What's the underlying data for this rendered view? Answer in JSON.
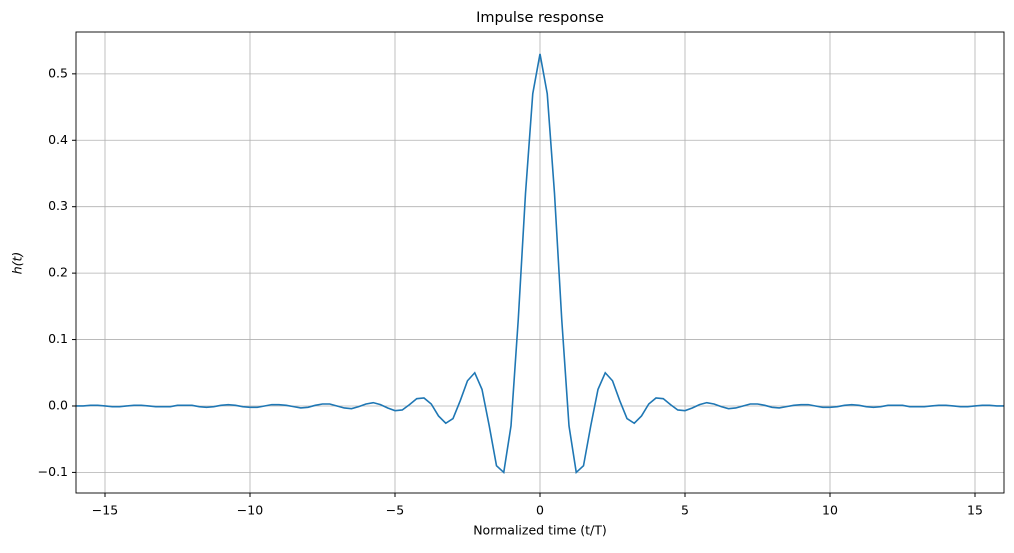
{
  "chart_data": {
    "type": "line",
    "title": "Impulse response",
    "xlabel": "Normalized time (t/T)",
    "ylabel": "h(t)",
    "x": [
      -16,
      -15.75,
      -15.5,
      -15.25,
      -15,
      -14.75,
      -14.5,
      -14.25,
      -14,
      -13.75,
      -13.5,
      -13.25,
      -13,
      -12.75,
      -12.5,
      -12.25,
      -12,
      -11.75,
      -11.5,
      -11.25,
      -11,
      -10.75,
      -10.5,
      -10.25,
      -10,
      -9.75,
      -9.5,
      -9.25,
      -9,
      -8.75,
      -8.5,
      -8.25,
      -8,
      -7.75,
      -7.5,
      -7.25,
      -7,
      -6.75,
      -6.5,
      -6.25,
      -6,
      -5.75,
      -5.5,
      -5.25,
      -5,
      -4.75,
      -4.5,
      -4.25,
      -4,
      -3.75,
      -3.5,
      -3.25,
      -3,
      -2.75,
      -2.5,
      -2.25,
      -2,
      -1.75,
      -1.5,
      -1.25,
      -1,
      -0.75,
      -0.5,
      -0.25,
      0,
      0.25,
      0.5,
      0.75,
      1,
      1.25,
      1.5,
      1.75,
      2,
      2.25,
      2.5,
      2.75,
      3,
      3.25,
      3.5,
      3.75,
      4,
      4.25,
      4.5,
      4.75,
      5,
      5.25,
      5.5,
      5.75,
      6,
      6.25,
      6.5,
      6.75,
      7,
      7.25,
      7.5,
      7.75,
      8,
      8.25,
      8.5,
      8.75,
      9,
      9.25,
      9.5,
      9.75,
      10,
      10.25,
      10.5,
      10.75,
      11,
      11.25,
      11.5,
      11.75,
      12,
      12.25,
      12.5,
      12.75,
      13,
      13.25,
      13.5,
      13.75,
      14,
      14.25,
      14.5,
      14.75,
      15,
      15.25,
      15.5,
      15.75,
      16
    ],
    "series": [
      {
        "name": "h(t)",
        "color": "#1f77b4",
        "values": [
          0.0,
          0.0,
          0.001,
          0.001,
          0.0,
          -0.001,
          -0.001,
          0.0,
          0.001,
          0.001,
          0.0,
          -0.001,
          -0.001,
          -0.001,
          0.001,
          0.001,
          0.001,
          -0.001,
          -0.002,
          -0.001,
          0.001,
          0.002,
          0.001,
          -0.001,
          -0.002,
          -0.002,
          0.0,
          0.002,
          0.002,
          0.001,
          -0.001,
          -0.003,
          -0.002,
          0.001,
          0.003,
          0.003,
          0.0,
          -0.003,
          -0.004,
          -0.001,
          0.003,
          0.005,
          0.002,
          -0.003,
          -0.007,
          -0.006,
          0.002,
          0.011,
          0.012,
          0.003,
          -0.015,
          -0.026,
          -0.019,
          0.008,
          0.038,
          0.05,
          0.025,
          -0.03,
          -0.09,
          -0.1,
          -0.03,
          0.13,
          0.32,
          0.47,
          0.53,
          0.47,
          0.32,
          0.13,
          -0.03,
          -0.1,
          -0.09,
          -0.03,
          0.025,
          0.05,
          0.038,
          0.008,
          -0.019,
          -0.026,
          -0.015,
          0.003,
          0.012,
          0.011,
          0.002,
          -0.006,
          -0.007,
          -0.003,
          0.002,
          0.005,
          0.003,
          -0.001,
          -0.004,
          -0.003,
          0.0,
          0.003,
          0.003,
          0.001,
          -0.002,
          -0.003,
          -0.001,
          0.001,
          0.002,
          0.002,
          0.0,
          -0.002,
          -0.002,
          -0.001,
          0.001,
          0.002,
          0.001,
          -0.001,
          -0.002,
          -0.001,
          0.001,
          0.001,
          0.001,
          -0.001,
          -0.001,
          -0.001,
          0.0,
          0.001,
          0.001,
          0.0,
          -0.001,
          -0.001,
          0.0,
          0.001,
          0.001,
          0.0,
          0.0
        ]
      }
    ],
    "xlim": [
      -16,
      16
    ],
    "ylim": [
      -0.131,
      0.563
    ],
    "xticks": [
      {
        "value": -15,
        "label": "−15"
      },
      {
        "value": -10,
        "label": "−10"
      },
      {
        "value": -5,
        "label": "−5"
      },
      0,
      5,
      10,
      15
    ],
    "yticks": [
      {
        "value": -0.1,
        "label": "−0.1"
      },
      {
        "value": 0,
        "label": "0.0"
      },
      0.1,
      0.2,
      0.3,
      0.4,
      0.5
    ],
    "grid": true
  }
}
